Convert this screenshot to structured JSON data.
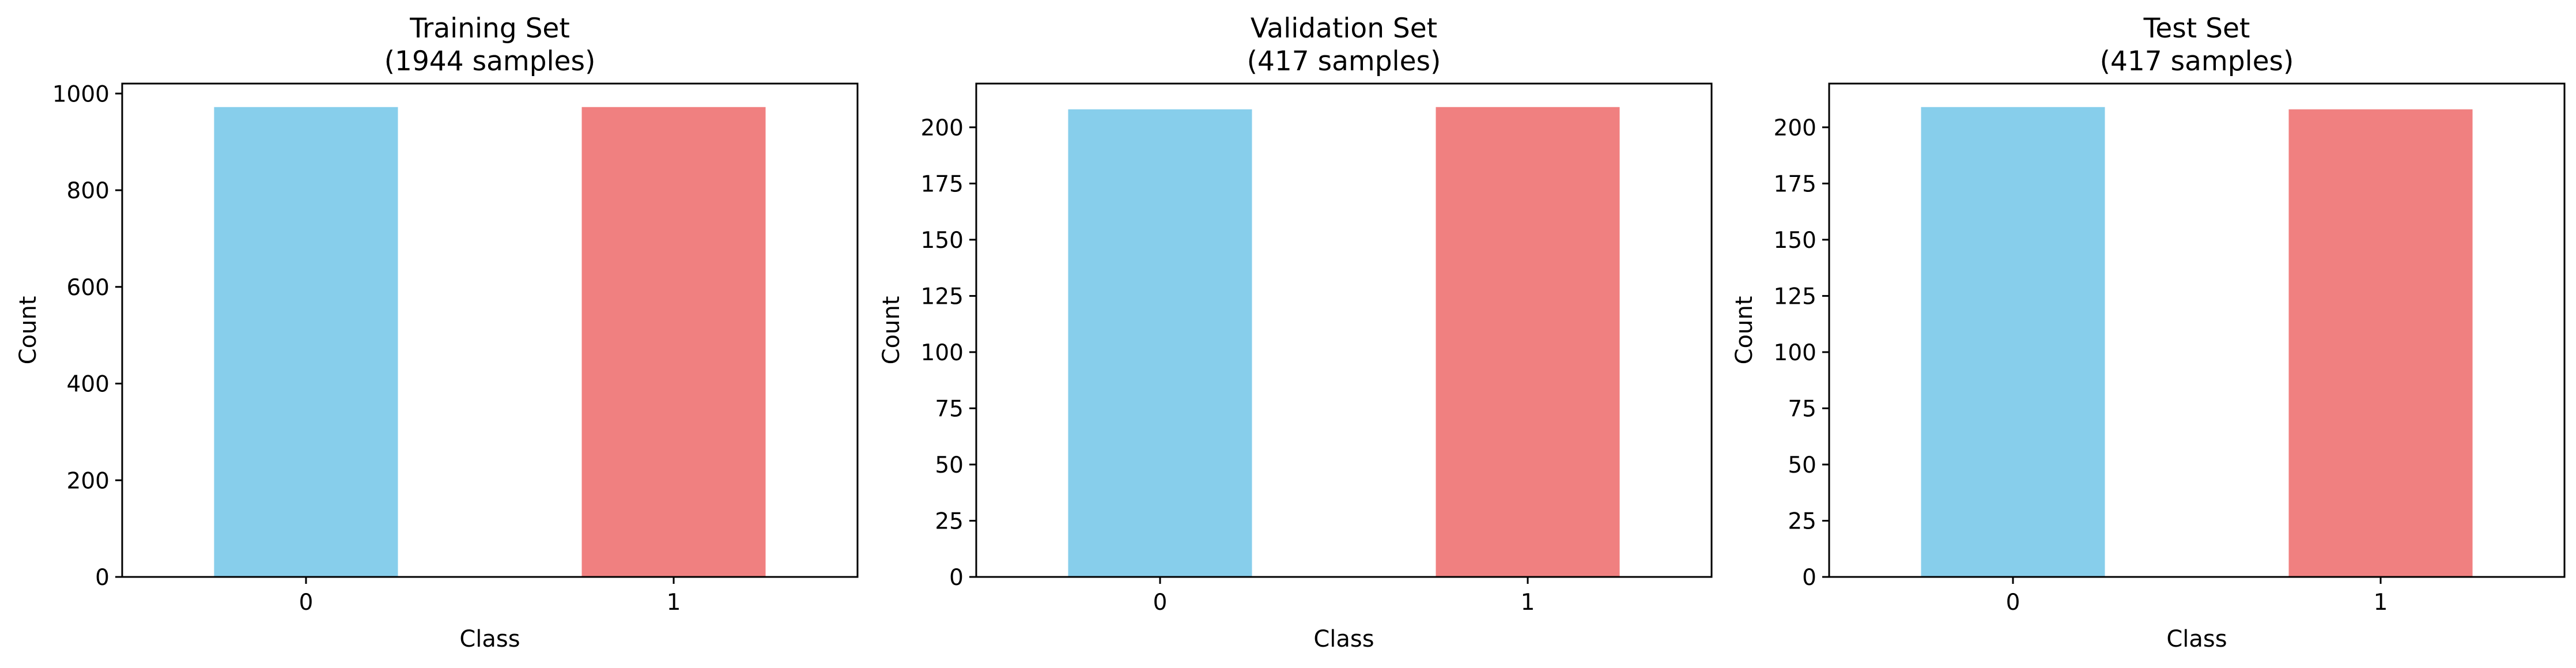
{
  "colors": {
    "class_0": "#87CEEB",
    "class_1": "#F08080",
    "axes": "#000000",
    "background": "#FFFFFF"
  },
  "chart_data": [
    {
      "type": "bar",
      "title": "Training Set\n(1944 samples)",
      "title_lines": [
        "Training Set",
        "(1944 samples)"
      ],
      "xlabel": "Class",
      "ylabel": "Count",
      "categories": [
        "0",
        "1"
      ],
      "values": [
        972,
        972
      ],
      "colors": [
        "#87CEEB",
        "#F08080"
      ],
      "ylim": [
        0,
        1020.6
      ],
      "yticks": [
        0,
        200,
        400,
        600,
        800,
        1000
      ],
      "grid": false,
      "legend": false
    },
    {
      "type": "bar",
      "title": "Validation Set\n(417 samples)",
      "title_lines": [
        "Validation Set",
        "(417 samples)"
      ],
      "xlabel": "Class",
      "ylabel": "Count",
      "categories": [
        "0",
        "1"
      ],
      "values": [
        208,
        209
      ],
      "colors": [
        "#87CEEB",
        "#F08080"
      ],
      "ylim": [
        0,
        219.45
      ],
      "yticks": [
        0,
        25,
        50,
        75,
        100,
        125,
        150,
        175,
        200
      ],
      "grid": false,
      "legend": false
    },
    {
      "type": "bar",
      "title": "Test Set\n(417 samples)",
      "title_lines": [
        "Test Set",
        "(417 samples)"
      ],
      "xlabel": "Class",
      "ylabel": "Count",
      "categories": [
        "0",
        "1"
      ],
      "values": [
        209,
        208
      ],
      "colors": [
        "#87CEEB",
        "#F08080"
      ],
      "ylim": [
        0,
        219.45
      ],
      "yticks": [
        0,
        25,
        50,
        75,
        100,
        125,
        150,
        175,
        200
      ],
      "grid": false,
      "legend": false
    }
  ]
}
